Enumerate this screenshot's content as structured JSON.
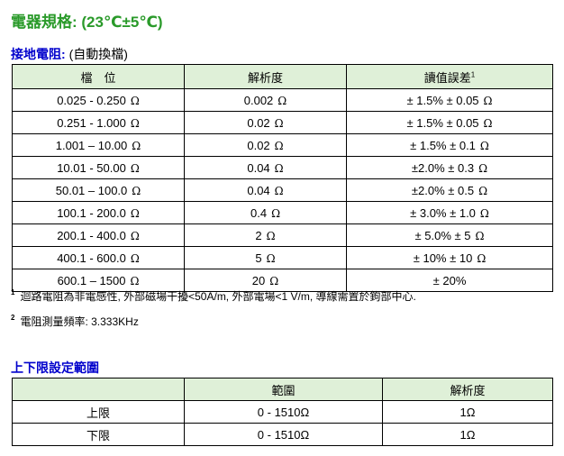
{
  "title": "電器規格: (23℃±5℃)",
  "section1": {
    "title": "接地電阻:",
    "mode": "(自動換檔)"
  },
  "spec_table": {
    "headers": [
      "檔　位",
      "解析度",
      "讀值誤差"
    ],
    "header_note_mark": "1",
    "rows": [
      {
        "range": "0.025 - 0.250",
        "res": "0.002",
        "acc": "± 1.5% ± 0.05"
      },
      {
        "range": "0.251 - 1.000",
        "res": "0.02",
        "acc": "± 1.5% ± 0.05"
      },
      {
        "range": "1.001 – 10.00",
        "res": "0.02",
        "acc": "± 1.5% ± 0.1"
      },
      {
        "range": "10.01 - 50.00",
        "res": "0.04",
        "acc": "±2.0% ± 0.3"
      },
      {
        "range": "50.01 – 100.0",
        "res": "0.04",
        "acc": "±2.0% ± 0.5"
      },
      {
        "range": "100.1 - 200.0",
        "res": "0.4",
        "acc": "± 3.0% ± 1.0"
      },
      {
        "range": "200.1 - 400.0",
        "res": "2",
        "acc": "± 5.0% ± 5"
      },
      {
        "range": "400.1 - 600.0",
        "res": "5",
        "acc": "± 10% ± 10"
      },
      {
        "range": "600.1 – 1500",
        "res": "20",
        "acc": "± 20%"
      }
    ],
    "unit": "Ω"
  },
  "notes": [
    {
      "mark": "1",
      "text": "迴路電阻為非電感性, 外部磁場干擾<50A/m, 外部電場<1 V/m, 導線需置於鉤部中心."
    },
    {
      "mark": "2",
      "text": "電阻測量頻率: 3.333KHz"
    }
  ],
  "section2": {
    "title": "上下限設定範圍"
  },
  "limits_table": {
    "headers": [
      "",
      "範圍",
      "解析度"
    ],
    "rows": [
      {
        "label": "上限",
        "range": "0 - 1510Ω",
        "res": "1Ω"
      },
      {
        "label": "下限",
        "range": "0 - 1510Ω",
        "res": "1Ω"
      }
    ]
  }
}
